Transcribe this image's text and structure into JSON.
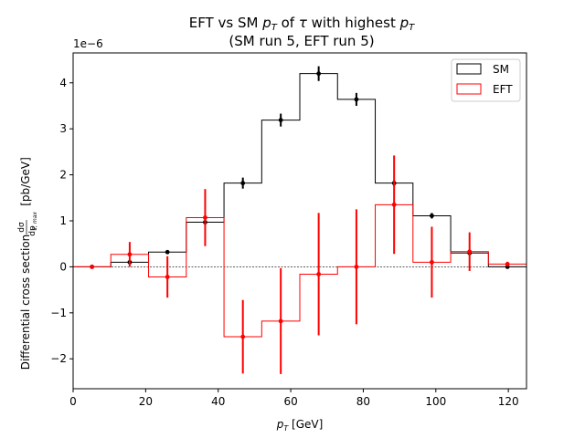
{
  "chart_data": {
    "type": "step",
    "title_line1_prefix": "EFT vs SM ",
    "title_line1_mid": " of ",
    "title_line1_tau": "τ",
    "title_line1_suffix": " with highest ",
    "title_line2": "(SM run 5, EFT run 5)",
    "pt_symbol": "p",
    "pt_sub": "T",
    "xlabel_unit": " [GeV]",
    "ylabel_main": "Differential cross section",
    "ylabel_frac_num": "dσ",
    "ylabel_frac_den": "dp",
    "ylabel_frac_den_sub": "T, max",
    "ylabel_unit": "[pb/GeV]",
    "y_scale_label": "1e−6",
    "xlim": [
      0,
      125
    ],
    "ylim": [
      -2.65,
      4.65
    ],
    "x_ticks": [
      0,
      20,
      40,
      60,
      80,
      100,
      120
    ],
    "y_ticks": [
      -2,
      -1,
      0,
      1,
      2,
      3,
      4
    ],
    "bin_edges": [
      0,
      10.4,
      20.8,
      31.2,
      41.6,
      52,
      62.5,
      72.9,
      83.3,
      93.7,
      104.1,
      114.5,
      125
    ],
    "legend_position": "top-right",
    "series": [
      {
        "name": "SM",
        "color": "#000000",
        "values": [
          0.0,
          0.1,
          0.32,
          0.97,
          1.82,
          3.19,
          4.2,
          3.64,
          1.82,
          1.11,
          0.3,
          0.0
        ],
        "errors": [
          0.0,
          0.03,
          0.04,
          0.06,
          0.12,
          0.14,
          0.16,
          0.14,
          0.06,
          0.06,
          0.04,
          0.02
        ]
      },
      {
        "name": "EFT",
        "color": "#ff0000",
        "values": [
          0.0,
          0.27,
          -0.22,
          1.07,
          -1.52,
          -1.18,
          -0.16,
          0.0,
          1.35,
          0.1,
          0.33,
          0.06
        ],
        "errors": [
          0.0,
          0.27,
          0.45,
          0.62,
          0.8,
          1.15,
          1.33,
          1.25,
          1.07,
          0.77,
          0.42,
          0.05
        ]
      }
    ],
    "zero_line": true
  }
}
